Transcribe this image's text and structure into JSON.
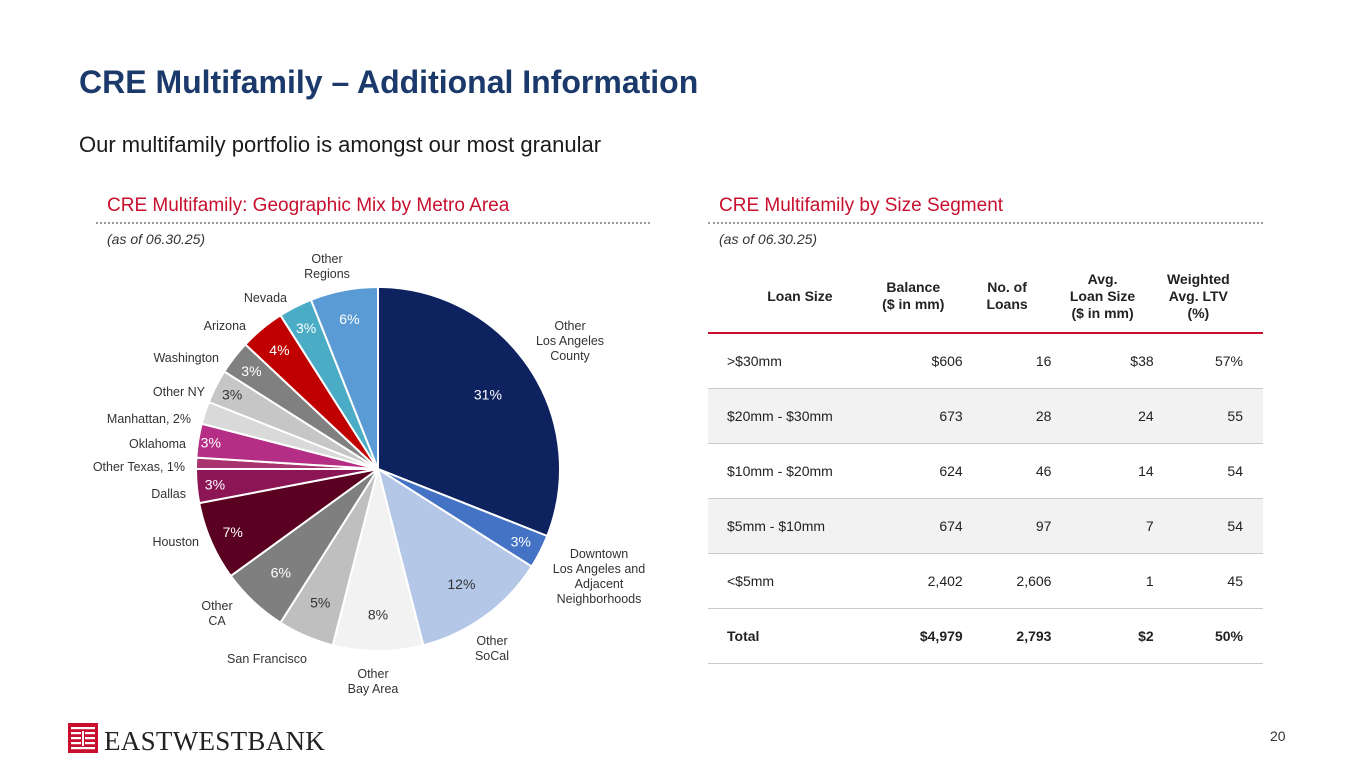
{
  "page": {
    "title": "CRE Multifamily – Additional Information",
    "subtitle": "Our multifamily portfolio is amongst our most granular",
    "page_number": "20"
  },
  "left_section": {
    "heading": "CRE Multifamily: Geographic Mix by Metro Area",
    "as_of": "(as of 06.30.25)"
  },
  "right_section": {
    "heading": "CRE Multifamily by Size Segment",
    "as_of": "(as of 06.30.25)"
  },
  "chart_data": [
    {
      "type": "pie",
      "start": "12 o'clock, clockwise",
      "slices": [
        {
          "label": "Other Los Angeles County",
          "value": 31,
          "display": "31%",
          "color": "#0e2260"
        },
        {
          "label": "Downtown Los Angeles and Adjacent Neighborhoods",
          "value": 3,
          "display": "3%",
          "color": "#4472c4"
        },
        {
          "label": "Other SoCal",
          "value": 12,
          "display": "12%",
          "color": "#b4c7e7"
        },
        {
          "label": "Other Bay Area",
          "value": 8,
          "display": "8%",
          "color": "#f2f2f2"
        },
        {
          "label": "San Francisco",
          "value": 5,
          "display": "5%",
          "color": "#bfbfbf"
        },
        {
          "label": "Other CA",
          "value": 6,
          "display": "6%",
          "color": "#7f7f7f"
        },
        {
          "label": "Houston",
          "value": 7,
          "display": "7%",
          "color": "#5a0020"
        },
        {
          "label": "Dallas",
          "value": 3,
          "display": "3%",
          "color": "#8c1556"
        },
        {
          "label": "Other Texas, 1%",
          "value": 1,
          "display": "",
          "color": "#a8336e"
        },
        {
          "label": "Oklahoma",
          "value": 3,
          "display": "3%",
          "color": "#b52e85"
        },
        {
          "label": "Manhattan, 2%",
          "value": 2,
          "display": "",
          "color": "#d9d9d9"
        },
        {
          "label": "Other NY",
          "value": 3,
          "display": "3%",
          "color": "#c6c6c6"
        },
        {
          "label": "Washington",
          "value": 3,
          "display": "3%",
          "color": "#808080"
        },
        {
          "label": "Arizona",
          "value": 4,
          "display": "4%",
          "color": "#c00000"
        },
        {
          "label": "Nevada",
          "value": 3,
          "display": "3%",
          "color": "#4bacc6"
        },
        {
          "label": "Other Regions",
          "value": 6,
          "display": "6%",
          "color": "#5b9bd5"
        }
      ]
    },
    {
      "type": "table",
      "columns": [
        "Loan Size",
        "Balance\n($ in mm)",
        "No. of\nLoans",
        "Avg.\nLoan Size\n($ in mm)",
        "Weighted\nAvg. LTV\n(%)"
      ],
      "rows": [
        [
          ">$30mm",
          "$606",
          "16",
          "$38",
          "57%"
        ],
        [
          "$20mm - $30mm",
          "673",
          "28",
          "24",
          "55"
        ],
        [
          "$10mm - $20mm",
          "624",
          "46",
          "14",
          "54"
        ],
        [
          "$5mm - $10mm",
          "674",
          "97",
          "7",
          "54"
        ],
        [
          "<$5mm",
          "2,402",
          "2,606",
          "1",
          "45"
        ],
        [
          "Total",
          "$4,979",
          "2,793",
          "$2",
          "50%"
        ]
      ]
    }
  ],
  "logo": {
    "text": "EASTWESTBANK",
    "color": "#c8102e"
  }
}
